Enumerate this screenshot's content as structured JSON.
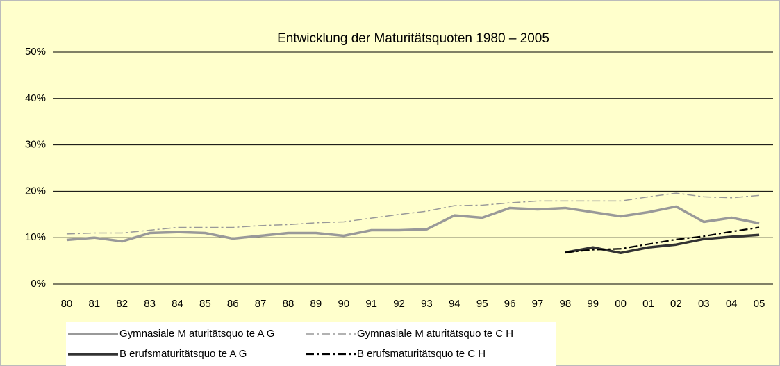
{
  "chart_data": {
    "type": "line",
    "title": "Entwicklung der Maturitätsquoten 1980 – 2005",
    "categories": [
      "80",
      "81",
      "82",
      "83",
      "84",
      "85",
      "86",
      "87",
      "88",
      "89",
      "90",
      "91",
      "92",
      "93",
      "94",
      "95",
      "96",
      "97",
      "98",
      "99",
      "00",
      "01",
      "02",
      "03",
      "04",
      "05"
    ],
    "ylim": [
      0,
      50
    ],
    "yticks": [
      {
        "value": 0,
        "label": "0%"
      },
      {
        "value": 10,
        "label": "10%"
      },
      {
        "value": 20,
        "label": "20%"
      },
      {
        "value": 30,
        "label": "30%"
      },
      {
        "value": 40,
        "label": "40%"
      },
      {
        "value": 50,
        "label": "50%"
      }
    ],
    "grid": true,
    "legend": "bottom",
    "series": [
      {
        "name": "Gymnasiale M aturitätsquo te A G",
        "color": "#999999",
        "line_style": "solid",
        "values": [
          9.5,
          10,
          9.2,
          11,
          11.2,
          11,
          9.8,
          10.4,
          11,
          11,
          10.4,
          11.6,
          11.6,
          11.8,
          14.8,
          14.3,
          16.4,
          16.1,
          16.4,
          15.5,
          14.6,
          15.5,
          16.7,
          13.4,
          14.3,
          13.1
        ]
      },
      {
        "name": "Gymnasiale M aturitätsquo te C H",
        "color": "#999999",
        "line_style": "dash-dot",
        "values": [
          10.8,
          11,
          11,
          11.6,
          12.2,
          12.2,
          12.2,
          12.6,
          12.8,
          13.2,
          13.4,
          14.2,
          15,
          15.7,
          16.9,
          17,
          17.5,
          17.9,
          17.9,
          17.9,
          17.9,
          18.8,
          19.6,
          18.8,
          18.6,
          19.1
        ]
      },
      {
        "name": "B erufsmaturitätsquo te A G",
        "color": "#333333",
        "line_style": "solid",
        "values": [
          null,
          null,
          null,
          null,
          null,
          null,
          null,
          null,
          null,
          null,
          null,
          null,
          null,
          null,
          null,
          null,
          null,
          null,
          6.8,
          7.9,
          6.7,
          7.9,
          8.5,
          9.7,
          10.2,
          10.6
        ]
      },
      {
        "name": "B erufsmaturitätsquo te C H",
        "color": "#000000",
        "line_style": "dash-dot",
        "values": [
          null,
          null,
          null,
          null,
          null,
          null,
          null,
          null,
          null,
          null,
          null,
          null,
          null,
          null,
          null,
          null,
          null,
          null,
          6.8,
          7.4,
          7.6,
          8.6,
          9.6,
          10.3,
          11.3,
          12.2
        ]
      }
    ]
  }
}
